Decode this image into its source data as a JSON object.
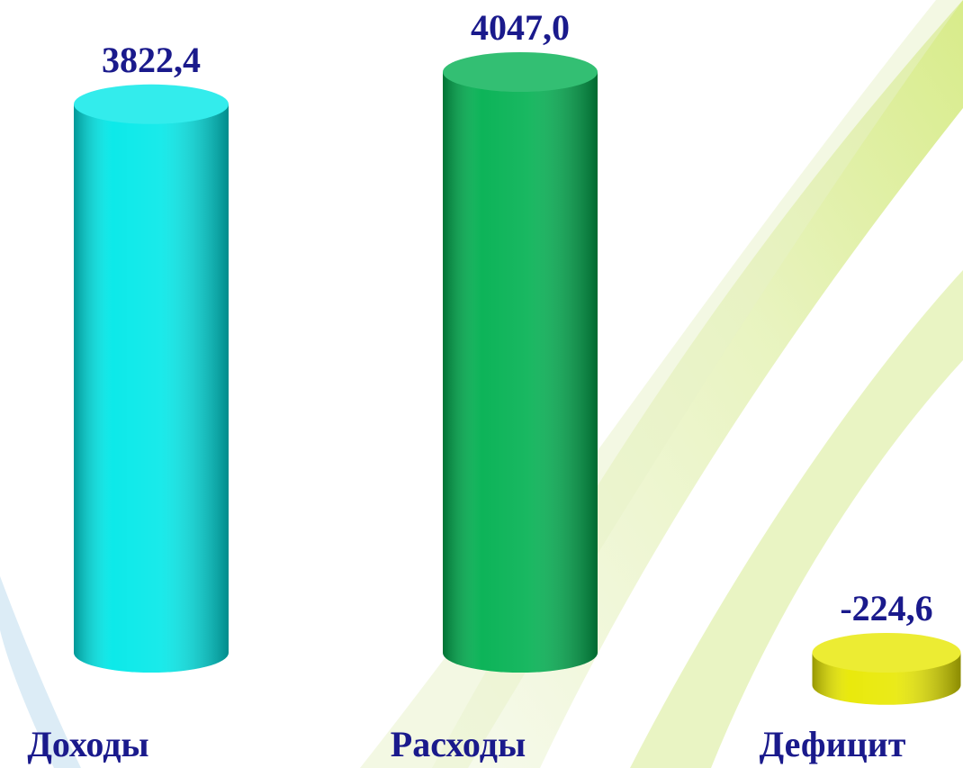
{
  "chart_data": {
    "type": "bar3d",
    "categories": [
      "Доходы",
      "Расходы",
      "Дефицит"
    ],
    "values": [
      3822.4,
      4047.0,
      -224.6
    ],
    "value_labels": [
      "3822,4",
      "4047,0",
      "-224,6"
    ],
    "colors": [
      "#00e8e8",
      "#00b050",
      "#e8e800"
    ]
  }
}
